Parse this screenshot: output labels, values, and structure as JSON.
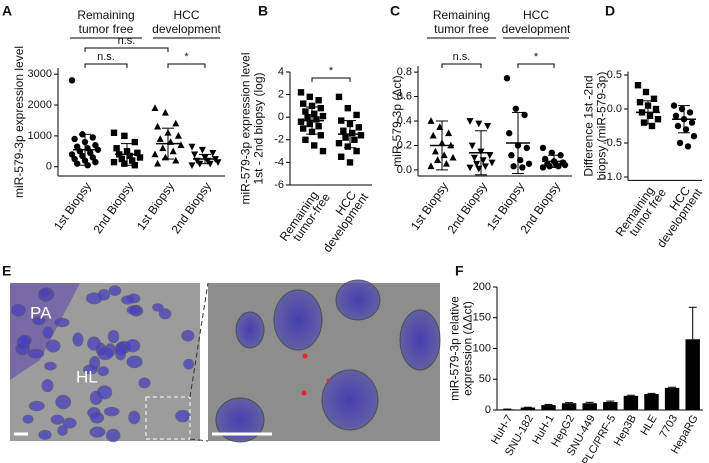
{
  "chart_data": [
    {
      "type": "dotplot",
      "panel": "A",
      "ylabel": [
        "miR-579-3p expression level"
      ],
      "group_labels": [
        [
          "Remaining",
          "tumor free"
        ],
        [
          "HCC",
          "development"
        ]
      ],
      "categories": [
        [
          "1st Biopsy"
        ],
        [
          "2nd Biopsy"
        ],
        [
          "1st Biopsy"
        ],
        [
          "2nd Biopsy"
        ]
      ],
      "ylim": [
        -300,
        3200
      ],
      "yticks": [
        0,
        1000,
        2000,
        3000
      ],
      "annotations": [
        "n.s.",
        "n.s.",
        "*"
      ],
      "groups": [
        {
          "marker": "circle",
          "mean": 550,
          "sd": 500,
          "points": [
            2800,
            1050,
            950,
            900,
            800,
            700,
            650,
            600,
            550,
            500,
            450,
            400,
            350,
            300,
            250,
            200,
            150,
            100,
            50
          ]
        },
        {
          "marker": "square",
          "mean": 400,
          "sd": 350,
          "points": [
            1100,
            1000,
            800,
            600,
            500,
            450,
            400,
            350,
            300,
            250,
            200,
            150,
            100,
            50
          ]
        },
        {
          "marker": "triangle",
          "mean": 750,
          "sd": 500,
          "points": [
            1900,
            1750,
            1400,
            1300,
            1100,
            1000,
            900,
            800,
            700,
            600,
            500,
            400,
            300,
            200,
            100
          ]
        },
        {
          "marker": "triangle-down",
          "mean": 250,
          "sd": 150,
          "points": [
            650,
            550,
            450,
            400,
            300,
            250,
            200,
            200,
            150,
            100,
            100,
            50
          ]
        }
      ]
    },
    {
      "type": "dotplot",
      "panel": "B",
      "ylabel": [
        "miR-579-3p expression level",
        "1st - 2nd biopsy (log)"
      ],
      "categories": [
        [
          "Remaining",
          "tumor-free"
        ],
        [
          "HCC",
          "development"
        ]
      ],
      "ylim": [
        -6,
        4
      ],
      "yticks": [
        -6,
        -4,
        -2,
        0,
        2,
        4
      ],
      "annotations": [
        "*"
      ],
      "groups": [
        {
          "marker": "square",
          "mean": -0.3,
          "sd": 1.2,
          "points": [
            2.2,
            1.8,
            1.5,
            1.2,
            1.0,
            0.8,
            0.5,
            0.3,
            0.1,
            0,
            -0.2,
            -0.4,
            -0.6,
            -0.8,
            -1.0,
            -1.3,
            -1.6,
            -2.0,
            -2.5,
            -3.0
          ]
        },
        {
          "marker": "square",
          "mean": -1.5,
          "sd": 1.2,
          "points": [
            1.8,
            0.8,
            0.2,
            -0.3,
            -0.6,
            -0.9,
            -1.2,
            -1.4,
            -1.6,
            -1.8,
            -2.0,
            -2.3,
            -2.6,
            -3.0,
            -3.5,
            -4.0
          ]
        }
      ]
    },
    {
      "type": "dotplot",
      "panel": "C",
      "ylabel": [
        "miR-579-3p (Δct)"
      ],
      "group_labels": [
        [
          "Remaining",
          "tumor free"
        ],
        [
          "HCC",
          "development"
        ]
      ],
      "categories": [
        [
          "1st Biopsy"
        ],
        [
          "2nd Biopsy"
        ],
        [
          "1st Biopsy"
        ],
        [
          "2nd Biopsy"
        ]
      ],
      "ylim": [
        -0.05,
        0.85
      ],
      "yticks": [
        {
          "value": 0,
          "label": "0.0"
        },
        0.2,
        0.4,
        0.6,
        0.8
      ],
      "annotations": [
        "n.s.",
        "*"
      ],
      "groups": [
        {
          "marker": "triangle",
          "mean": 0.2,
          "sd": 0.2,
          "points": [
            0.4,
            0.35,
            0.3,
            0.28,
            0.22,
            0.2,
            0.15,
            0.12,
            0.1,
            0.08,
            0.05,
            0.03
          ]
        },
        {
          "marker": "triangle-down",
          "mean": 0.14,
          "sd": 0.18,
          "points": [
            0.4,
            0.38,
            0.36,
            0.2,
            0.15,
            0.12,
            0.1,
            0.08,
            0.06,
            0.05,
            0.03,
            0.02,
            0.01
          ]
        },
        {
          "marker": "circle",
          "mean": 0.22,
          "sd": 0.25,
          "points": [
            0.75,
            0.5,
            0.45,
            0.3,
            0.2,
            0.18,
            0.12,
            0.08,
            0.05,
            0.03,
            0.02
          ]
        },
        {
          "marker": "circle",
          "mean": 0.07,
          "sd": 0.05,
          "points": [
            0.18,
            0.14,
            0.12,
            0.09,
            0.07,
            0.06,
            0.05,
            0.04,
            0.04,
            0.03,
            0.03,
            0.02
          ]
        }
      ]
    },
    {
      "type": "dotplot",
      "panel": "D",
      "ylabel": [
        "Difference 1st -2nd",
        "biopsy (miR-579-3p)"
      ],
      "categories": [
        [
          "Remaining",
          "tumor free"
        ],
        [
          "HCC",
          "development"
        ]
      ],
      "ylim": [
        -1.05,
        0.55
      ],
      "yticks": [
        {
          "value": -1,
          "label": "-1.0"
        },
        -0.5,
        {
          "value": 0,
          "label": "0.0"
        },
        0.5
      ],
      "groups": [
        {
          "marker": "square",
          "mean": -0.05,
          "sd": 0.17,
          "points": [
            0.35,
            0.25,
            0.15,
            0.1,
            0.05,
            0,
            -0.05,
            -0.1,
            -0.15,
            -0.2,
            -0.25
          ]
        },
        {
          "marker": "circle",
          "mean": -0.15,
          "sd": 0.2,
          "points": [
            0.05,
            0.0,
            -0.05,
            -0.1,
            -0.15,
            -0.2,
            -0.25,
            -0.3,
            -0.4,
            -0.5,
            -0.55
          ]
        }
      ]
    },
    {
      "type": "bar",
      "panel": "F",
      "ylabel": [
        "miR-579-3p relative",
        "expression (ΔΔct)"
      ],
      "categories": [
        "HuH-7",
        "SNU-182",
        "HuH-1",
        "HepG2",
        "SNU-449",
        "PLC/PRF-5",
        "Hep3B",
        "HLE",
        "7703",
        "HepaRG"
      ],
      "values": [
        1,
        4,
        8,
        11,
        11,
        13,
        23,
        26,
        36,
        115
      ],
      "errors": [
        0.5,
        0.5,
        1,
        1,
        1.5,
        1.5,
        1,
        1,
        1,
        52
      ],
      "color": "#000000",
      "ylim": [
        0,
        200
      ],
      "yticks": [
        0,
        50,
        100,
        150,
        200
      ]
    }
  ],
  "image_panel": {
    "panel": "E",
    "labels": [
      "PA",
      "HL"
    ]
  }
}
